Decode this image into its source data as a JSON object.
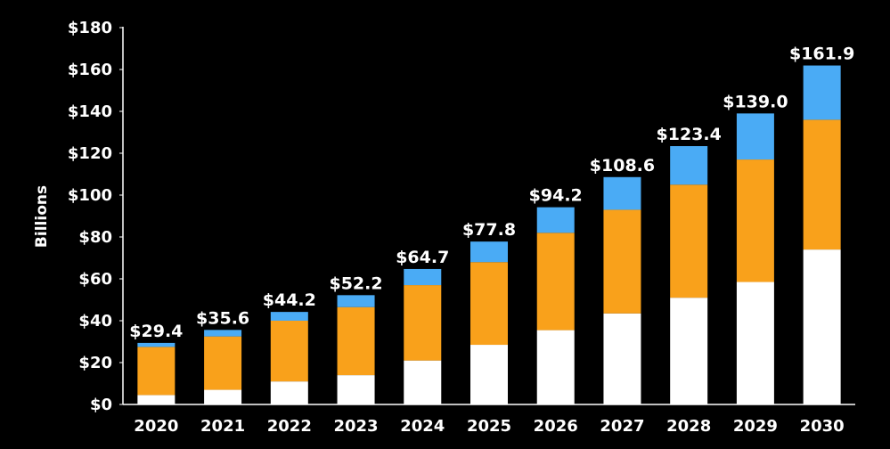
{
  "chart_data": {
    "type": "bar",
    "stacked": true,
    "ylabel": "Billions",
    "xlabel": "",
    "ylim": [
      0,
      180
    ],
    "y_ticks": [
      0,
      20,
      40,
      60,
      80,
      100,
      120,
      140,
      160,
      180
    ],
    "y_tick_labels": [
      "$0",
      "$20",
      "$40",
      "$60",
      "$80",
      "$100",
      "$120",
      "$140",
      "$160",
      "$180"
    ],
    "categories": [
      "2020",
      "2021",
      "2022",
      "2023",
      "2024",
      "2025",
      "2026",
      "2027",
      "2028",
      "2029",
      "2030"
    ],
    "series": [
      {
        "color": "#ffffff",
        "values": [
          4.5,
          7.0,
          11.0,
          14.0,
          21.0,
          28.5,
          35.5,
          43.5,
          51.0,
          58.5,
          74.0
        ]
      },
      {
        "color": "#f9a11b",
        "values": [
          23.0,
          25.5,
          29.0,
          32.5,
          36.0,
          39.5,
          46.5,
          49.5,
          54.0,
          58.5,
          62.0
        ]
      },
      {
        "color": "#4aabf5",
        "values": [
          1.9,
          3.1,
          4.2,
          5.7,
          7.7,
          9.8,
          12.2,
          15.6,
          18.4,
          22.0,
          25.9
        ]
      }
    ],
    "totals": [
      29.4,
      35.6,
      44.2,
      52.2,
      64.7,
      77.8,
      94.2,
      108.6,
      123.4,
      139.0,
      161.9
    ],
    "total_labels": [
      "$29.4",
      "$35.6",
      "$44.2",
      "$52.2",
      "$64.7",
      "$77.8",
      "$94.2",
      "$108.6",
      "$123.4",
      "$139.0",
      "$161.9"
    ],
    "grid": false,
    "legend": "none",
    "axis_color": "#ffffff",
    "background": "#000000"
  }
}
